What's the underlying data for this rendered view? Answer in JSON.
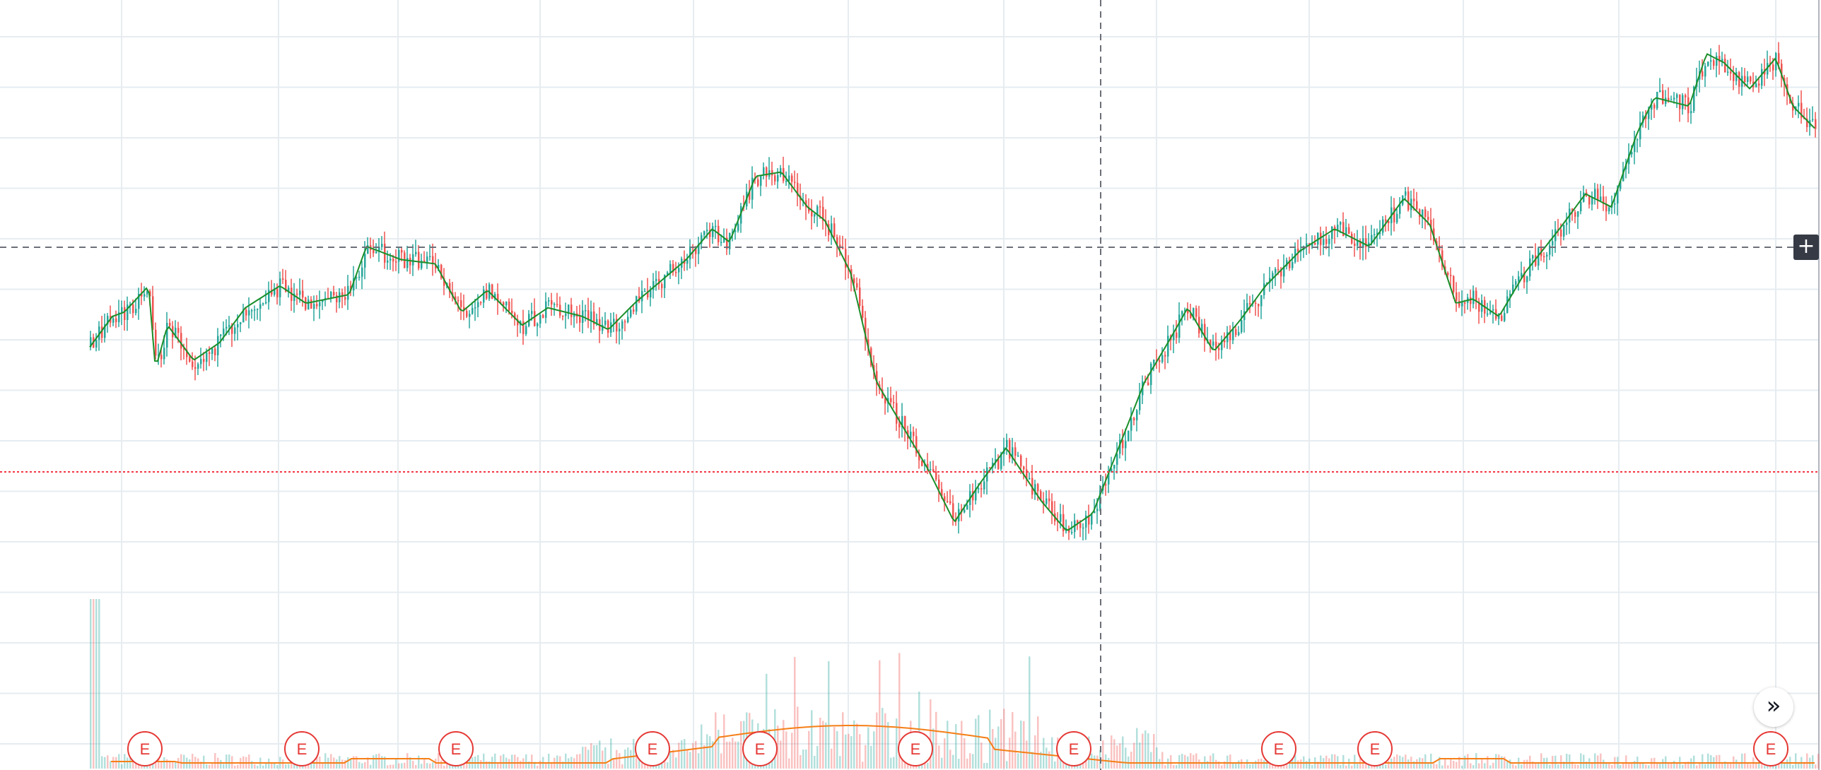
{
  "chart_data": {
    "type": "candlestick",
    "series": [
      {
        "name": "",
        "values": []
      }
    ],
    "x_ticks_labeled": false,
    "y_ticks_labeled": false,
    "grid": true,
    "price_path_keypoints": [
      [
        0,
        0.47
      ],
      [
        0.013,
        0.4
      ],
      [
        0.02,
        0.39
      ],
      [
        0.034,
        0.33
      ],
      [
        0.038,
        0.52
      ],
      [
        0.045,
        0.42
      ],
      [
        0.06,
        0.5
      ],
      [
        0.075,
        0.46
      ],
      [
        0.09,
        0.38
      ],
      [
        0.11,
        0.33
      ],
      [
        0.125,
        0.37
      ],
      [
        0.15,
        0.35
      ],
      [
        0.16,
        0.24
      ],
      [
        0.18,
        0.27
      ],
      [
        0.2,
        0.28
      ],
      [
        0.215,
        0.39
      ],
      [
        0.23,
        0.34
      ],
      [
        0.25,
        0.42
      ],
      [
        0.265,
        0.38
      ],
      [
        0.285,
        0.4
      ],
      [
        0.3,
        0.43
      ],
      [
        0.315,
        0.37
      ],
      [
        0.33,
        0.32
      ],
      [
        0.345,
        0.27
      ],
      [
        0.36,
        0.2
      ],
      [
        0.37,
        0.23
      ],
      [
        0.385,
        0.08
      ],
      [
        0.4,
        0.07
      ],
      [
        0.415,
        0.15
      ],
      [
        0.425,
        0.18
      ],
      [
        0.44,
        0.3
      ],
      [
        0.455,
        0.55
      ],
      [
        0.47,
        0.65
      ],
      [
        0.485,
        0.75
      ],
      [
        0.5,
        0.87
      ],
      [
        0.515,
        0.78
      ],
      [
        0.53,
        0.7
      ],
      [
        0.55,
        0.82
      ],
      [
        0.565,
        0.89
      ],
      [
        0.58,
        0.85
      ],
      [
        0.595,
        0.7
      ],
      [
        0.61,
        0.55
      ],
      [
        0.625,
        0.45
      ],
      [
        0.635,
        0.38
      ],
      [
        0.65,
        0.48
      ],
      [
        0.665,
        0.41
      ],
      [
        0.68,
        0.33
      ],
      [
        0.7,
        0.25
      ],
      [
        0.72,
        0.2
      ],
      [
        0.74,
        0.24
      ],
      [
        0.76,
        0.13
      ],
      [
        0.775,
        0.19
      ],
      [
        0.79,
        0.37
      ],
      [
        0.8,
        0.36
      ],
      [
        0.815,
        0.4
      ],
      [
        0.83,
        0.3
      ],
      [
        0.85,
        0.2
      ],
      [
        0.865,
        0.12
      ],
      [
        0.88,
        0.15
      ],
      [
        0.895,
        -0.02
      ],
      [
        0.905,
        -0.1
      ],
      [
        0.925,
        -0.08
      ],
      [
        0.935,
        -0.2
      ],
      [
        0.945,
        -0.18
      ],
      [
        0.96,
        -0.12
      ],
      [
        0.975,
        -0.19
      ],
      [
        0.985,
        -0.08
      ],
      [
        1.0,
        -0.02
      ]
    ],
    "earnings_markers": [
      "E",
      "E",
      "E",
      "E",
      "E",
      "E",
      "E",
      "E",
      "E",
      "E"
    ]
  },
  "colors": {
    "up": "#26a69a",
    "up_line": "#1b8f2a",
    "down": "#ef5350",
    "grid": "#e6ecf0",
    "crosshair": "#6c6f78",
    "last_price_line": "#f23645",
    "volume_ma": "#f57f17",
    "earnings": "#e53935"
  },
  "controls": {
    "scroll_to_realtime_icon": "»",
    "crosshair_add_icon": "+"
  },
  "icons": {
    "scroll": "double-chevron-right-icon",
    "plus": "plus-icon"
  }
}
